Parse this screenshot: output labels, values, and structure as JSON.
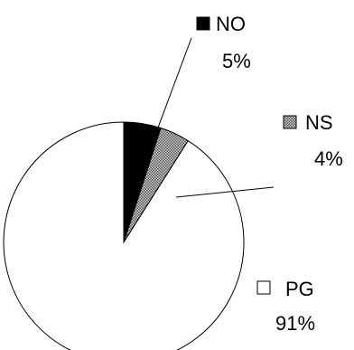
{
  "chart_data": {
    "type": "pie",
    "title": "",
    "slices": [
      {
        "name": "NO",
        "value": 5,
        "label": "5%",
        "fill": "black"
      },
      {
        "name": "NS",
        "value": 4,
        "label": "4%",
        "fill": "hatched-gray"
      },
      {
        "name": "PG",
        "value": 91,
        "label": "91%",
        "fill": "white"
      }
    ],
    "start_angle": "12 o'clock",
    "direction": "clockwise",
    "slice_outline_color": "#000000",
    "legend": "none",
    "labels": "outside with leader lines"
  },
  "colors": {
    "NO": "#000000",
    "NS": "#8a8a8a",
    "PG": "#ffffff"
  }
}
